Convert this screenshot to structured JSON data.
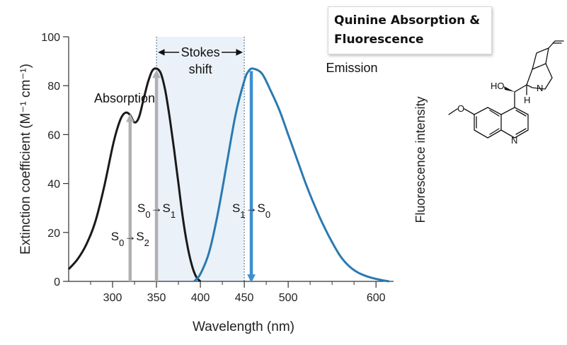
{
  "title": {
    "line1": "Quinine Absorption &",
    "line2": "Fluorescence"
  },
  "chart_data": {
    "type": "line",
    "xlabel": "Wavelength (nm)",
    "ylabel_left": "Extinction coefficient (M⁻¹ cm⁻¹)",
    "ylabel_right": "Fluorescence intensity",
    "xlim": [
      250,
      620
    ],
    "ylim": [
      0,
      100
    ],
    "x_ticks": [
      300,
      350,
      400,
      450,
      500,
      600
    ],
    "y_ticks": [
      0,
      20,
      40,
      60,
      80,
      100
    ],
    "grid": false,
    "highlight_region": {
      "x": [
        350,
        450
      ],
      "color": "#eaf1f8"
    },
    "series": [
      {
        "name": "Absorption",
        "color": "#1a1a1a",
        "x": [
          250,
          260,
          270,
          280,
          290,
          300,
          305,
          310,
          315,
          320,
          325,
          330,
          335,
          340,
          345,
          350,
          355,
          360,
          365,
          370,
          375,
          380,
          385,
          390,
          395,
          400
        ],
        "y": [
          5,
          9,
          15,
          24,
          38,
          55,
          62,
          67,
          69,
          68,
          65,
          67,
          74,
          81,
          86,
          87,
          85,
          78,
          67,
          54,
          40,
          26,
          15,
          7,
          2,
          0
        ]
      },
      {
        "name": "Emission",
        "color": "#2a7ab0",
        "x": [
          393,
          400,
          410,
          420,
          430,
          440,
          450,
          455,
          460,
          470,
          480,
          490,
          500,
          510,
          520,
          530,
          540,
          550,
          560,
          570,
          580,
          590,
          600,
          610,
          615
        ],
        "y": [
          0,
          3,
          12,
          28,
          48,
          68,
          82,
          86,
          87,
          85,
          78,
          70,
          60,
          50,
          40,
          31,
          23,
          16,
          10,
          6,
          3.5,
          2,
          1,
          0.3,
          0
        ]
      }
    ],
    "transitions": [
      {
        "label_main": "S",
        "from_sub": "0",
        "to_sub": "2",
        "x": 320,
        "direction": "up",
        "peak": 68,
        "color": "#b0b0b0"
      },
      {
        "label_main": "S",
        "from_sub": "0",
        "to_sub": "1",
        "x": 350,
        "direction": "up",
        "peak": 86,
        "color": "#b0b0b0"
      },
      {
        "label_main": "S",
        "from_sub": "1",
        "to_sub": "0",
        "x": 458,
        "direction": "down",
        "peak": 86,
        "color": "#3d8fcf"
      }
    ],
    "annotations": {
      "absorption": "Absorption",
      "emission": "Emission",
      "stokes_line1": "Stokes",
      "stokes_line2": "shift"
    }
  },
  "molecule": {
    "atoms": {
      "ho": "HO",
      "h": "H",
      "n_ring": "N",
      "n_bicyclic": "N",
      "o_methoxy": "O"
    }
  }
}
